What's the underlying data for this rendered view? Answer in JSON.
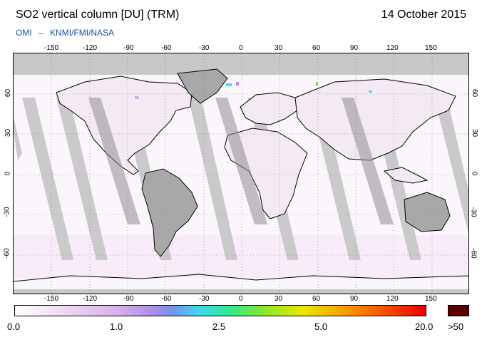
{
  "header": {
    "title": "SO2 vertical column [DU] (TRM)",
    "date": "14 October 2015",
    "credit_left": "OMI",
    "credit_dash": "–",
    "credit_right": "KNMI/FMI/NASA"
  },
  "axes": {
    "lon_ticks": [
      "-150",
      "-120",
      "-90",
      "-60",
      "-30",
      "0",
      "30",
      "60",
      "90",
      "120",
      "150"
    ],
    "lon_values": [
      -150,
      -120,
      -90,
      -60,
      -30,
      0,
      30,
      60,
      90,
      120,
      150
    ],
    "lat_ticks": [
      "60",
      "30",
      "0",
      "-30",
      "-60"
    ],
    "lat_values": [
      60,
      30,
      0,
      -30,
      -60
    ],
    "lon_range": [
      -180,
      180
    ],
    "lat_range": [
      -90,
      90
    ],
    "grid": "dotted"
  },
  "colorbar": {
    "labels": [
      "0.0",
      "1.0",
      "2.5",
      "5.0",
      "20.0"
    ],
    "overflow_label": ">50",
    "stops": [
      "#ffffff",
      "#f0d8f2",
      "#d8b0ec",
      "#b090e8",
      "#7890ee",
      "#40d8f0",
      "#30e890",
      "#80e830",
      "#e8e800",
      "#f8a000",
      "#f85000",
      "#e80000"
    ],
    "overflow_color": "#5a0000"
  },
  "colors": {
    "title_text": "#000000",
    "credit_text": "#1a4f9c",
    "land_gray": "#a8a8a8",
    "swath_gray": "#cacaca",
    "nodata_gray": "#c8c8c8"
  }
}
